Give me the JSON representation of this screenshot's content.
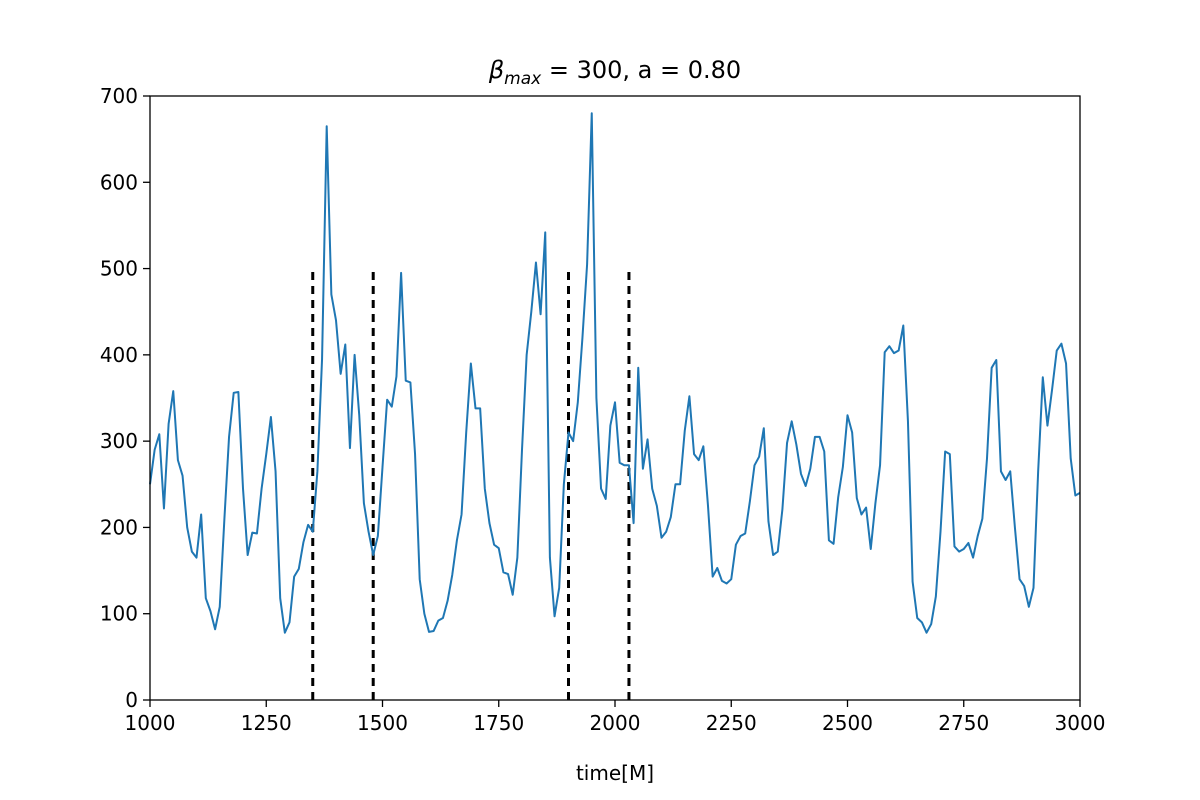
{
  "chart_data": {
    "type": "line",
    "title": {
      "symbol": "β",
      "subscript": "max",
      "rest": " = 300, a = 0.80"
    },
    "xlabel": "time[M]",
    "ylabel": "",
    "xlim": [
      1000,
      3000
    ],
    "ylim": [
      0,
      700
    ],
    "xticks": [
      "1000",
      "1250",
      "1500",
      "1750",
      "2000",
      "2250",
      "2500",
      "2750",
      "3000"
    ],
    "yticks": [
      "0",
      "100",
      "200",
      "300",
      "400",
      "500",
      "600",
      "700"
    ],
    "grid": false,
    "line_color": "#1f77b4",
    "vline_color": "#000000",
    "vlines": [
      {
        "x": 1350,
        "ymax": 500
      },
      {
        "x": 1480,
        "ymax": 500
      },
      {
        "x": 1900,
        "ymax": 500
      },
      {
        "x": 2030,
        "ymax": 500
      }
    ],
    "series": [
      {
        "x": [
          1000,
          1010,
          1020,
          1030,
          1040,
          1050,
          1060,
          1070,
          1080,
          1090,
          1100,
          1110,
          1120,
          1130,
          1140,
          1150,
          1160,
          1170,
          1180,
          1190,
          1200,
          1210,
          1220,
          1230,
          1240,
          1250,
          1260,
          1270,
          1280,
          1290,
          1300,
          1310,
          1320,
          1330,
          1340,
          1350,
          1360,
          1370,
          1380,
          1390,
          1400,
          1410,
          1420,
          1430,
          1440,
          1450,
          1460,
          1470,
          1480,
          1490,
          1500,
          1510,
          1520,
          1530,
          1540,
          1550,
          1560,
          1570,
          1580,
          1590,
          1600,
          1610,
          1620,
          1630,
          1640,
          1650,
          1660,
          1670,
          1680,
          1690,
          1700,
          1710,
          1720,
          1730,
          1740,
          1750,
          1760,
          1770,
          1780,
          1790,
          1800,
          1810,
          1820,
          1830,
          1840,
          1850,
          1860,
          1870,
          1880,
          1890,
          1900,
          1910,
          1920,
          1930,
          1940,
          1950,
          1960,
          1970,
          1980,
          1990,
          2000,
          2010,
          2020,
          2030,
          2040,
          2050,
          2060,
          2070,
          2080,
          2090,
          2100,
          2110,
          2120,
          2130,
          2140,
          2150,
          2160,
          2170,
          2180,
          2190,
          2200,
          2210,
          2220,
          2230,
          2240,
          2250,
          2260,
          2270,
          2280,
          2290,
          2300,
          2310,
          2320,
          2330,
          2340,
          2350,
          2360,
          2370,
          2380,
          2390,
          2400,
          2410,
          2420,
          2430,
          2440,
          2450,
          2460,
          2470,
          2480,
          2490,
          2500,
          2510,
          2520,
          2530,
          2540,
          2550,
          2560,
          2570,
          2580,
          2590,
          2600,
          2610,
          2620,
          2630,
          2640,
          2650,
          2660,
          2670,
          2680,
          2690,
          2700,
          2710,
          2720,
          2730,
          2740,
          2750,
          2760,
          2770,
          2780,
          2790,
          2800,
          2810,
          2820,
          2830,
          2840,
          2850,
          2860,
          2870,
          2880,
          2890,
          2900,
          2910,
          2920,
          2930,
          2940,
          2950,
          2960,
          2970,
          2980,
          2990,
          3000
        ],
        "y": [
          250,
          290,
          308,
          222,
          320,
          358,
          278,
          260,
          200,
          172,
          165,
          215,
          118,
          103,
          82,
          108,
          210,
          305,
          356,
          357,
          245,
          168,
          194,
          193,
          245,
          285,
          328,
          265,
          118,
          78,
          90,
          143,
          152,
          183,
          203,
          195,
          265,
          395,
          665,
          470,
          440,
          378,
          412,
          292,
          400,
          330,
          228,
          195,
          168,
          190,
          270,
          348,
          340,
          375,
          495,
          370,
          368,
          285,
          140,
          100,
          79,
          80,
          92,
          95,
          115,
          145,
          185,
          215,
          310,
          390,
          338,
          338,
          245,
          205,
          180,
          176,
          148,
          146,
          122,
          165,
          290,
          400,
          450,
          507,
          447,
          542,
          165,
          97,
          130,
          250,
          310,
          300,
          345,
          420,
          505,
          680,
          350,
          245,
          233,
          318,
          345,
          275,
          272,
          272,
          205,
          385,
          268,
          302,
          245,
          225,
          188,
          195,
          212,
          250,
          250,
          312,
          352,
          285,
          278,
          294,
          225,
          143,
          153,
          138,
          135,
          140,
          180,
          190,
          193,
          230,
          272,
          282,
          315,
          207,
          168,
          172,
          221,
          298,
          323,
          296,
          262,
          248,
          268,
          305,
          305,
          288,
          185,
          181,
          235,
          270,
          330,
          310,
          234,
          215,
          223,
          175,
          228,
          272,
          403,
          410,
          402,
          405,
          434,
          323,
          137,
          95,
          90,
          78,
          88,
          120,
          195,
          288,
          285,
          178,
          172,
          175,
          182,
          165,
          190,
          210,
          280,
          385,
          394,
          265,
          255,
          265,
          200,
          140,
          132,
          108,
          130,
          265,
          374,
          318,
          360,
          405,
          413,
          390,
          280,
          237,
          240
        ]
      }
    ]
  }
}
